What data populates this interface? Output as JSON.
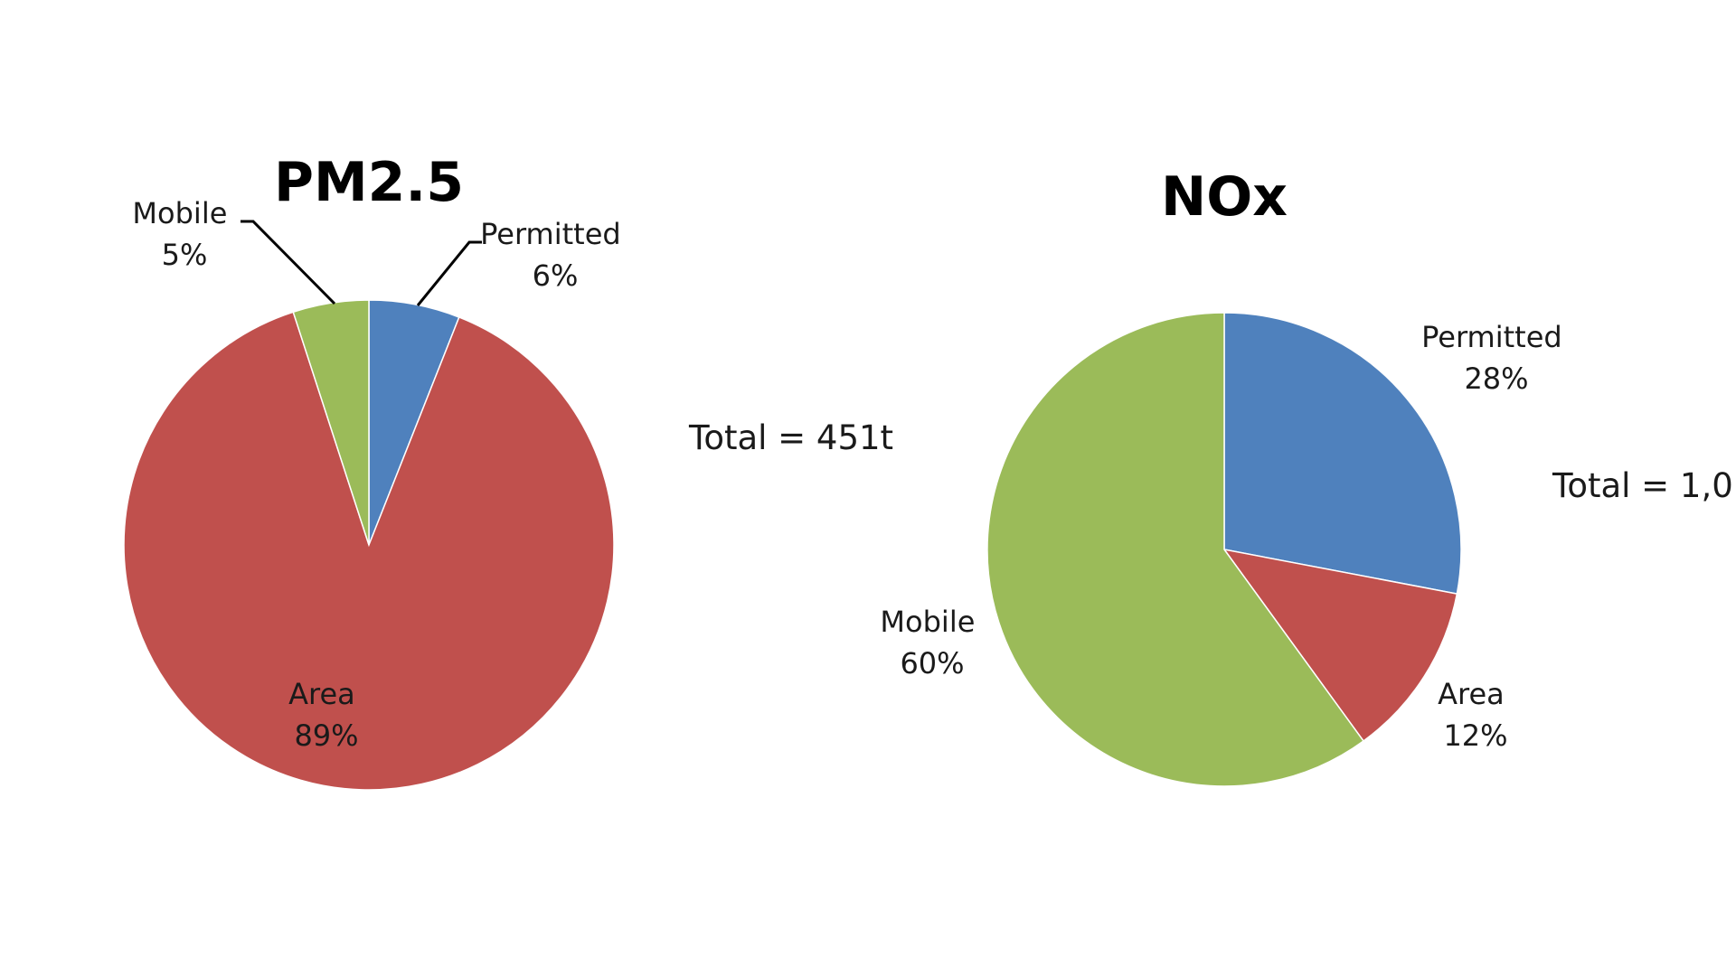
{
  "chart_data": [
    {
      "type": "pie",
      "title": "PM2.5",
      "total_label": "Total = 451t",
      "slices": [
        {
          "name": "Permitted",
          "value": 6,
          "pct_label": "6%",
          "color": "#4F81BD"
        },
        {
          "name": "Area",
          "value": 89,
          "pct_label": "89%",
          "color": "#C0504D"
        },
        {
          "name": "Mobile",
          "value": 5,
          "pct_label": "5%",
          "color": "#9BBB59"
        }
      ]
    },
    {
      "type": "pie",
      "title": "NOx",
      "total_label": "Total = 1,0",
      "slices": [
        {
          "name": "Permitted",
          "value": 28,
          "pct_label": "28%",
          "color": "#4F81BD"
        },
        {
          "name": "Area",
          "value": 12,
          "pct_label": "12%",
          "color": "#C0504D"
        },
        {
          "name": "Mobile",
          "value": 60,
          "pct_label": "60%",
          "color": "#9BBB59"
        }
      ]
    }
  ]
}
